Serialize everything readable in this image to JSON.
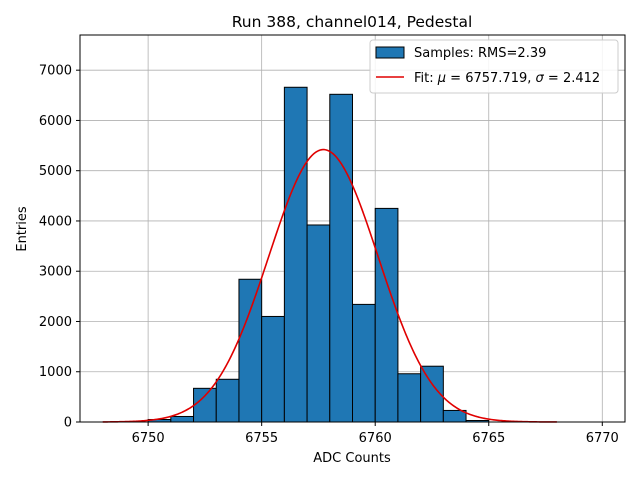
{
  "chart_data": {
    "type": "bar",
    "title": "Run 388, channel014, Pedestal",
    "xlabel": "ADC Counts",
    "ylabel": "Entries",
    "xlim": [
      6747.0,
      6771.0
    ],
    "ylim": [
      0,
      7700
    ],
    "xticks": [
      6750,
      6755,
      6760,
      6765,
      6770
    ],
    "yticks": [
      0,
      1000,
      2000,
      3000,
      4000,
      5000,
      6000,
      7000
    ],
    "grid": true,
    "legend_position": "top-right",
    "histogram": {
      "name": "Samples: RMS=2.39",
      "color": "#1f77b4",
      "edgecolor": "#000000",
      "bin_edges": [
        6750,
        6751,
        6752,
        6753,
        6754,
        6755,
        6756,
        6757,
        6758,
        6759,
        6760,
        6761,
        6762,
        6763,
        6764
      ],
      "counts": [
        50,
        110,
        670,
        850,
        2840,
        2100,
        6660,
        3920,
        6520,
        2340,
        4250,
        960,
        1110,
        230
      ]
    },
    "tail": {
      "bin_edges": [
        6764,
        6765
      ],
      "counts": [
        30
      ]
    },
    "fit": {
      "name_prefix": "Fit: ",
      "mu_label": "μ",
      "mu": 6757.719,
      "sigma_label": "σ",
      "sigma": 2.412,
      "amplitude": 5420,
      "x_range": [
        6748,
        6768
      ],
      "color": "#e00000"
    }
  }
}
